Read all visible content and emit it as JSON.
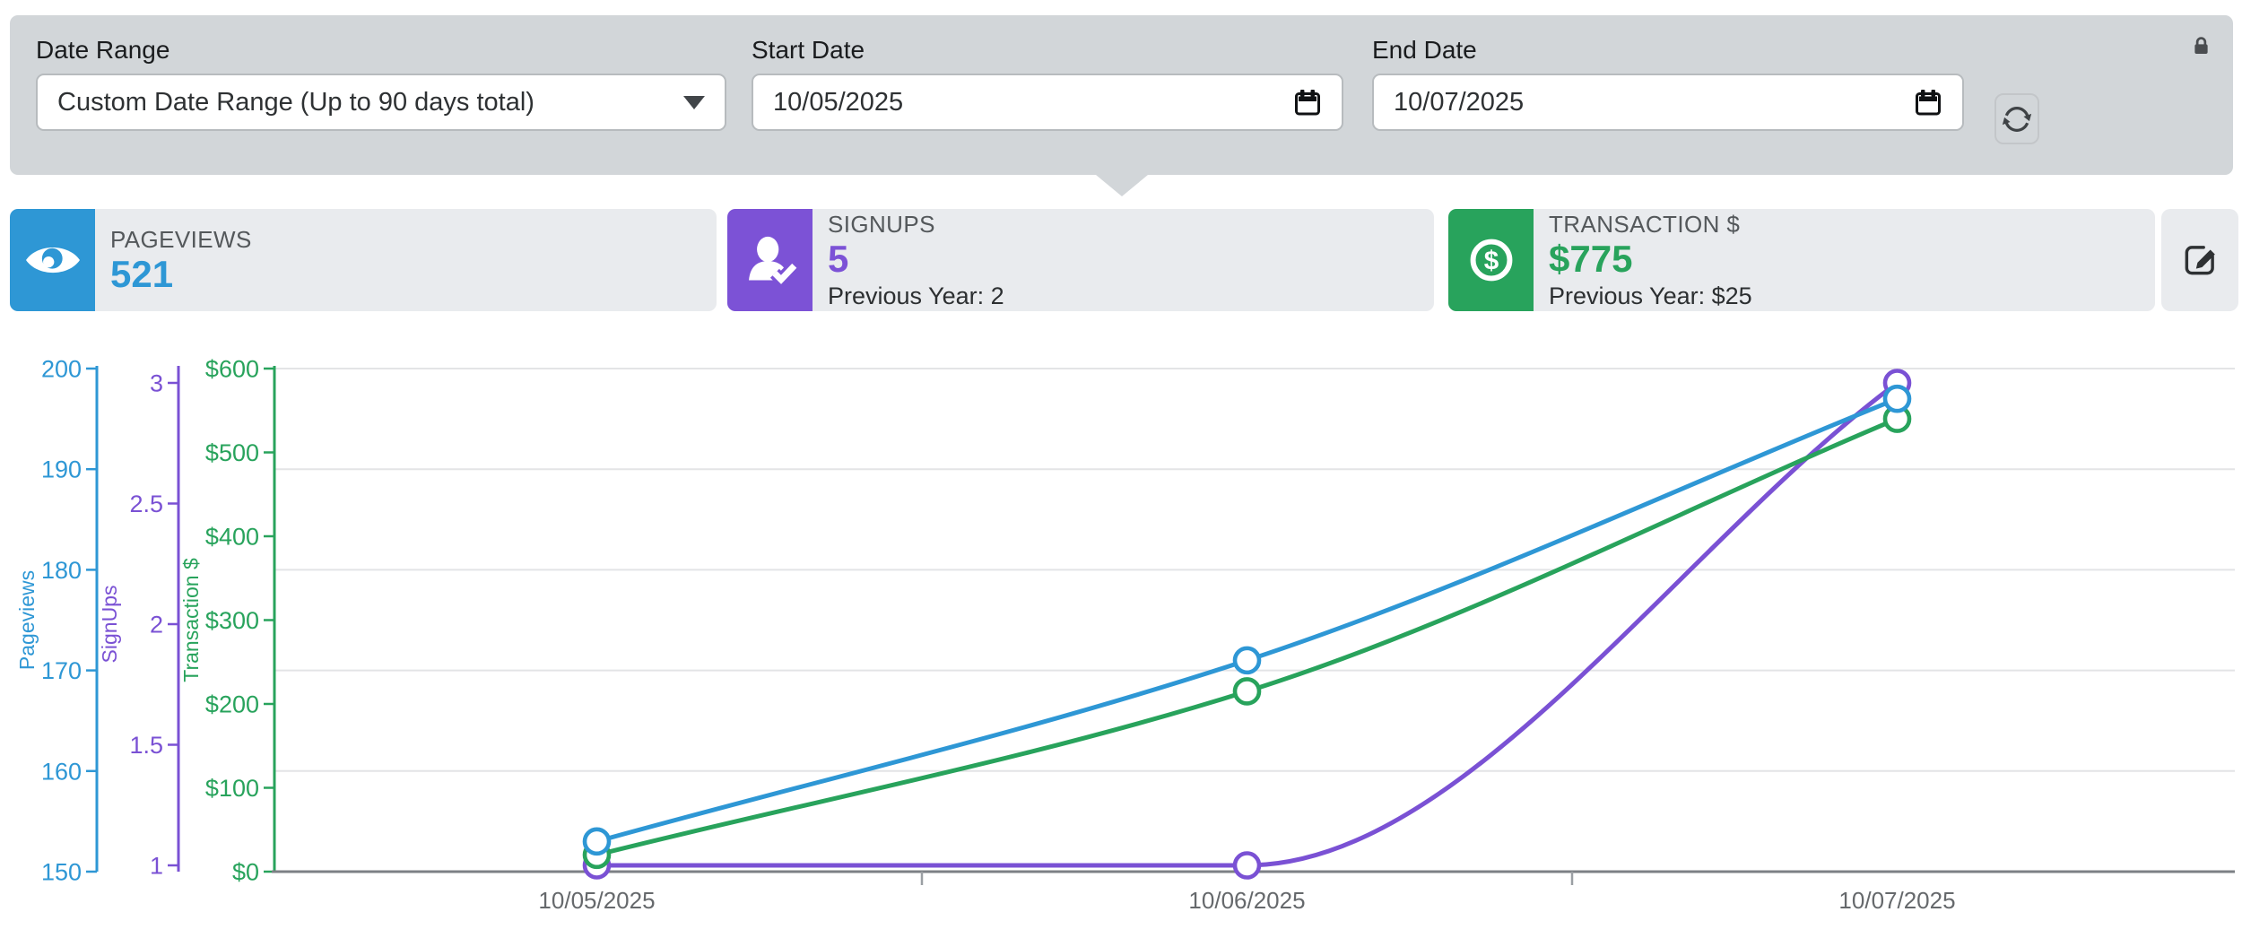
{
  "filter_bar": {
    "date_range_label": "Date Range",
    "date_range_value": "Custom Date Range (Up to 90 days total)",
    "start_date_label": "Start Date",
    "start_date_value": "10/05/2025",
    "end_date_label": "End Date",
    "end_date_value": "10/07/2025",
    "icons": [
      "chevron-down-icon",
      "calendar-icon",
      "refresh-icon",
      "lock-icon"
    ]
  },
  "metrics": [
    {
      "label": "PAGEVIEWS",
      "value": "521",
      "previous": "",
      "color": "#2e97d5",
      "icon": "eye-icon"
    },
    {
      "label": "SIGNUPS",
      "value": "5",
      "previous": "Previous Year: 2",
      "color": "#7c52d6",
      "icon": "user-check-icon"
    },
    {
      "label": "TRANSACTION $",
      "value": "$775",
      "previous": "Previous Year: $25",
      "color": "#28a35c",
      "icon": "dollar-circle-icon"
    }
  ],
  "edit_button": {
    "icon": "edit-icon"
  },
  "chart_data": {
    "type": "line",
    "categories": [
      "10/05/2025",
      "10/06/2025",
      "10/07/2025"
    ],
    "series": [
      {
        "name": "Pageviews",
        "color": "#2e97d5",
        "axis": 0,
        "values": [
          153,
          171,
          197
        ]
      },
      {
        "name": "SignUps",
        "color": "#7a51d4",
        "axis": 1,
        "values": [
          1,
          1,
          3
        ]
      },
      {
        "name": "Transaction $",
        "color": "#28a35c",
        "axis": 2,
        "values": [
          20,
          215,
          540
        ]
      }
    ],
    "axes": [
      {
        "title": "Pageviews",
        "color": "#2e97d5",
        "prefix": "",
        "ticks": [
          150,
          160,
          170,
          180,
          190,
          200
        ]
      },
      {
        "title": "SignUps",
        "color": "#7a51d4",
        "prefix": "",
        "ticks": [
          1,
          1.5,
          2,
          2.5,
          3
        ]
      },
      {
        "title": "Transaction $",
        "color": "#28a35c",
        "prefix": "$",
        "ticks": [
          0,
          100,
          200,
          300,
          400,
          500,
          600
        ]
      }
    ],
    "grid": true,
    "legend": false,
    "grid_color": "#e3e4e6",
    "x_axis_color": "#7c8085",
    "x_label_color": "#66696c"
  }
}
